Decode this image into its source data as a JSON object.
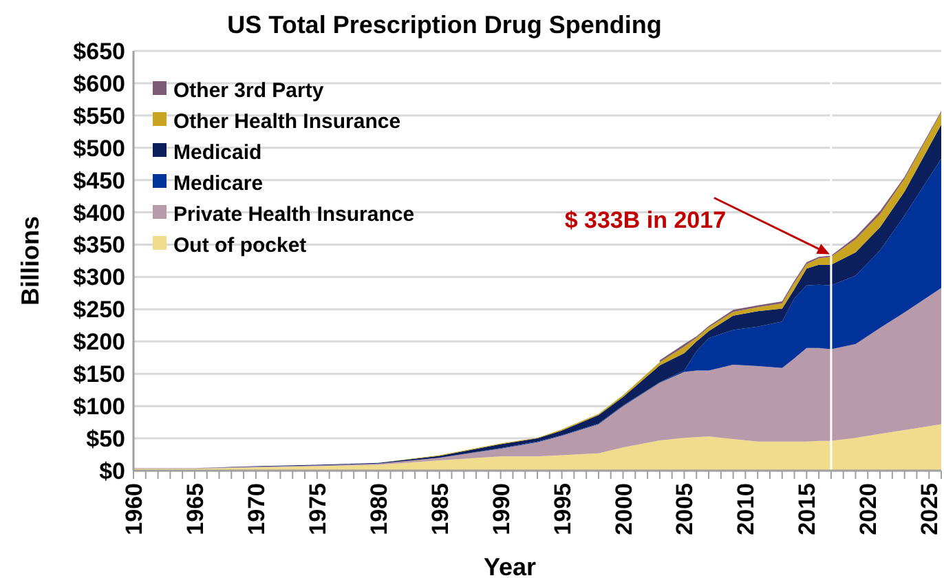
{
  "chart_data": {
    "type": "area",
    "stacked": true,
    "title": "US Total Prescription Drug Spending",
    "xlabel": "Year",
    "ylabel": "Billions",
    "x": [
      1960,
      1965,
      1970,
      1975,
      1980,
      1985,
      1990,
      1993,
      1995,
      1998,
      2000,
      2003,
      2005,
      2006,
      2007,
      2009,
      2011,
      2013,
      2014,
      2015,
      2016,
      2017,
      2019,
      2021,
      2023,
      2026
    ],
    "series": [
      {
        "name": "Out of pocket",
        "color": "#f0dc8c",
        "values": [
          3,
          3,
          5,
          7,
          9,
          16,
          22,
          22,
          24,
          27,
          36,
          47,
          51,
          52,
          53,
          49,
          45,
          45,
          45,
          45,
          46,
          46,
          51,
          57,
          63,
          72
        ]
      },
      {
        "name": "Private Health Insurance",
        "color": "#b89aab",
        "values": [
          1,
          1,
          1,
          1,
          2,
          4,
          12,
          22,
          30,
          45,
          64,
          89,
          102,
          103,
          102,
          115,
          117,
          114,
          129,
          145,
          144,
          142,
          145,
          164,
          182,
          211
        ]
      },
      {
        "name": "Medicare",
        "color": "#003399",
        "values": [
          0,
          0,
          0,
          0,
          0,
          0,
          1,
          1,
          1,
          1,
          1,
          1,
          2,
          30,
          50,
          54,
          61,
          72,
          93,
          97,
          98,
          99,
          106,
          120,
          150,
          200
        ]
      },
      {
        "name": "Medicaid",
        "color": "#0a1f5c",
        "values": [
          0,
          0,
          1,
          1,
          1,
          3,
          6,
          5,
          7,
          13,
          13,
          26,
          27,
          15,
          11,
          22,
          24,
          20,
          14,
          26,
          31,
          32,
          36,
          36,
          37,
          53
        ]
      },
      {
        "name": "Other Health Insurance",
        "color": "#c8a420",
        "values": [
          0,
          0,
          0,
          0,
          0,
          1,
          1,
          1,
          2,
          2,
          3,
          5,
          10,
          6,
          6,
          6,
          6,
          8,
          10,
          7,
          10,
          12,
          20,
          20,
          20,
          19
        ]
      },
      {
        "name": "Other 3rd Party",
        "color": "#7f5a74",
        "values": [
          null,
          null,
          null,
          null,
          null,
          null,
          null,
          null,
          null,
          null,
          null,
          3,
          4,
          2,
          2,
          3,
          3,
          3,
          3,
          3,
          2,
          2,
          4,
          5,
          3,
          2
        ]
      }
    ],
    "xlim": [
      1960,
      2026
    ],
    "xticks": [
      1960,
      {
        "value": 1961,
        "label": null
      },
      {
        "value": 1962,
        "label": null
      },
      {
        "value": 1963,
        "label": null
      },
      {
        "value": 1964,
        "label": null
      },
      1965,
      {
        "value": 1966,
        "label": null
      },
      {
        "value": 1967,
        "label": null
      },
      {
        "value": 1968,
        "label": null
      },
      {
        "value": 1969,
        "label": null
      },
      1970,
      {
        "value": 1971,
        "label": null
      },
      {
        "value": 1972,
        "label": null
      },
      {
        "value": 1973,
        "label": null
      },
      {
        "value": 1974,
        "label": null
      },
      1975,
      {
        "value": 1976,
        "label": null
      },
      {
        "value": 1977,
        "label": null
      },
      {
        "value": 1978,
        "label": null
      },
      {
        "value": 1979,
        "label": null
      },
      1980,
      {
        "value": 1981,
        "label": null
      },
      {
        "value": 1982,
        "label": null
      },
      {
        "value": 1983,
        "label": null
      },
      {
        "value": 1984,
        "label": null
      },
      1985,
      {
        "value": 1986,
        "label": null
      },
      {
        "value": 1987,
        "label": null
      },
      {
        "value": 1988,
        "label": null
      },
      {
        "value": 1989,
        "label": null
      },
      1990,
      {
        "value": 1991,
        "label": null
      },
      {
        "value": 1992,
        "label": null
      },
      {
        "value": 1993,
        "label": null
      },
      {
        "value": 1994,
        "label": null
      },
      1995,
      {
        "value": 1996,
        "label": null
      },
      {
        "value": 1997,
        "label": null
      },
      {
        "value": 1998,
        "label": null
      },
      {
        "value": 1999,
        "label": null
      },
      2000,
      {
        "value": 2001,
        "label": null
      },
      {
        "value": 2002,
        "label": null
      },
      {
        "value": 2003,
        "label": null
      },
      {
        "value": 2004,
        "label": null
      },
      2005,
      {
        "value": 2006,
        "label": null
      },
      {
        "value": 2007,
        "label": null
      },
      {
        "value": 2008,
        "label": null
      },
      {
        "value": 2009,
        "label": null
      },
      2010,
      {
        "value": 2011,
        "label": null
      },
      {
        "value": 2012,
        "label": null
      },
      {
        "value": 2013,
        "label": null
      },
      {
        "value": 2014,
        "label": null
      },
      2015,
      {
        "value": 2016,
        "label": null
      },
      {
        "value": 2017,
        "label": null
      },
      {
        "value": 2018,
        "label": null
      },
      {
        "value": 2019,
        "label": null
      },
      2020,
      {
        "value": 2021,
        "label": null
      },
      {
        "value": 2022,
        "label": null
      },
      {
        "value": 2023,
        "label": null
      },
      {
        "value": 2024,
        "label": null
      },
      2025,
      {
        "value": 2026,
        "label": null
      }
    ],
    "ylim": [
      0,
      650
    ],
    "yticks": [
      {
        "value": 0,
        "label": "$0"
      },
      {
        "value": 50,
        "label": "$50"
      },
      {
        "value": 100,
        "label": "$100"
      },
      {
        "value": 150,
        "label": "$150"
      },
      {
        "value": 200,
        "label": "$200"
      },
      {
        "value": 250,
        "label": "$250"
      },
      {
        "value": 300,
        "label": "$300"
      },
      {
        "value": 350,
        "label": "$350"
      },
      {
        "value": 400,
        "label": "$400"
      },
      {
        "value": 450,
        "label": "$450"
      },
      {
        "value": 500,
        "label": "$500"
      },
      {
        "value": 550,
        "label": "$550"
      },
      {
        "value": 600,
        "label": "$600"
      },
      {
        "value": 650,
        "label": "$650"
      }
    ],
    "grid": "y",
    "legend": "top left",
    "ref_lines": [
      {
        "axis": "x",
        "value": 2017,
        "color": "#ffffff"
      }
    ],
    "annotations": [
      "$ 333B in 2017"
    ]
  }
}
